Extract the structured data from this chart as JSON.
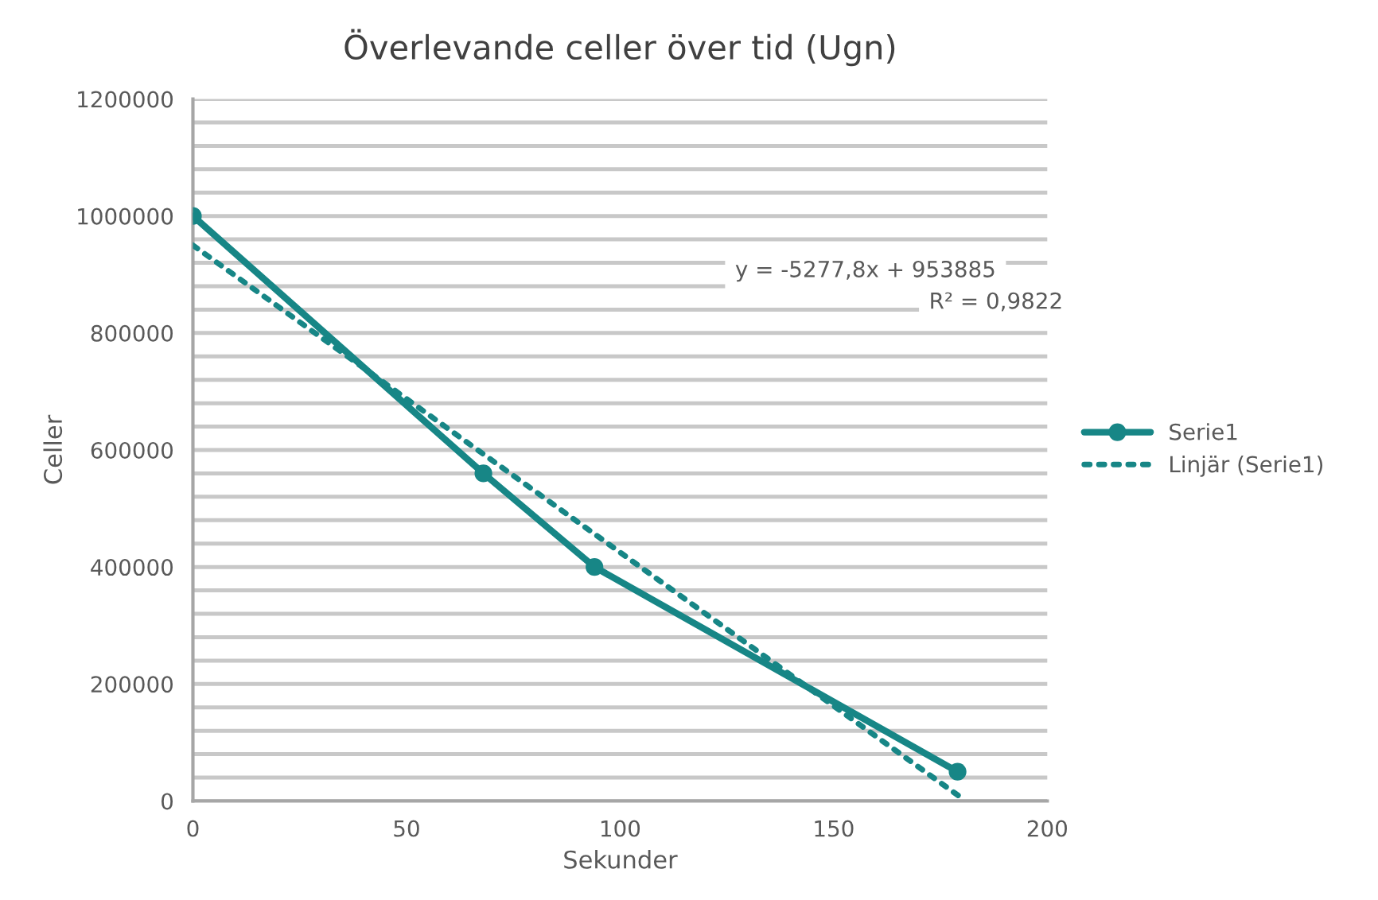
{
  "chart_data": {
    "type": "line",
    "title": "Överlevande celler över tid (Ugn)",
    "xlabel": "Sekunder",
    "ylabel": "Celler",
    "annotations": [
      "y = -5277,8x + 953885",
      "R² = 0,9822"
    ],
    "series": [
      {
        "name": "Serie1",
        "color": "#178686",
        "x": [
          0,
          68,
          94,
          179
        ],
        "values": [
          1000000,
          560000,
          400000,
          50000
        ],
        "marker": "circle",
        "line_style": "solid"
      },
      {
        "name": "Linjär (Serie1)",
        "color": "#178686",
        "type": "line",
        "x": [
          0,
          180
        ],
        "values": [
          950000,
          5000
        ],
        "marker": "none",
        "line_style": "dotted"
      }
    ],
    "xlim": [
      0,
      200
    ],
    "xticks": [
      0,
      50,
      100,
      150,
      200
    ],
    "ylim": [
      0,
      1200000
    ],
    "yticks": [
      0,
      {
        "value": 40000,
        "label": null
      },
      {
        "value": 80000,
        "label": null
      },
      {
        "value": 120000,
        "label": null
      },
      {
        "value": 160000,
        "label": null
      },
      200000,
      {
        "value": 240000,
        "label": null
      },
      {
        "value": 280000,
        "label": null
      },
      {
        "value": 320000,
        "label": null
      },
      {
        "value": 360000,
        "label": null
      },
      400000,
      {
        "value": 440000,
        "label": null
      },
      {
        "value": 480000,
        "label": null
      },
      {
        "value": 520000,
        "label": null
      },
      {
        "value": 560000,
        "label": null
      },
      600000,
      {
        "value": 640000,
        "label": null
      },
      {
        "value": 680000,
        "label": null
      },
      {
        "value": 720000,
        "label": null
      },
      {
        "value": 760000,
        "label": null
      },
      800000,
      {
        "value": 840000,
        "label": null
      },
      {
        "value": 880000,
        "label": null
      },
      {
        "value": 920000,
        "label": null
      },
      {
        "value": 960000,
        "label": null
      },
      1000000,
      {
        "value": 1040000,
        "label": null
      },
      {
        "value": 1080000,
        "label": null
      },
      {
        "value": 1120000,
        "label": null
      },
      {
        "value": 1160000,
        "label": null
      },
      1200000
    ],
    "grid": "y",
    "legend": "right"
  }
}
